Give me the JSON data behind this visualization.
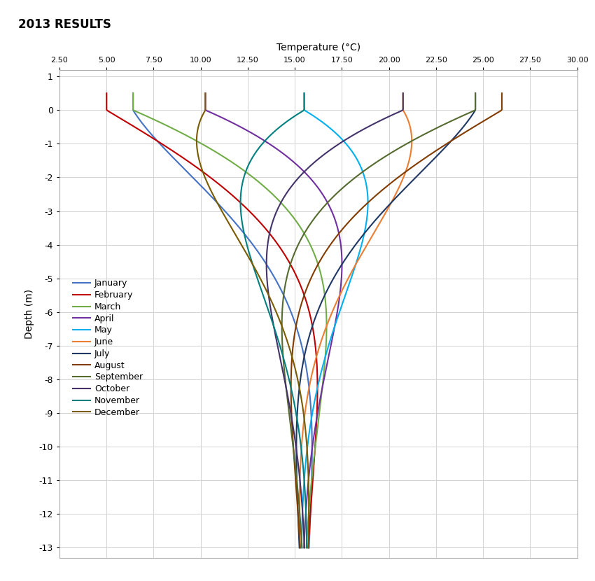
{
  "title": "2013 RESULTS",
  "xlabel": "Temperature (°C)",
  "ylabel": "Depth (m)",
  "xlim": [
    2.5,
    30.0
  ],
  "ylim": [
    -13.3,
    1.2
  ],
  "xticks": [
    2.5,
    5.0,
    7.5,
    10.0,
    12.5,
    15.0,
    17.5,
    20.0,
    22.5,
    25.0,
    27.5,
    30.0
  ],
  "yticks": [
    1,
    0,
    -1,
    -2,
    -3,
    -4,
    -5,
    -6,
    -7,
    -8,
    -9,
    -10,
    -11,
    -12,
    -13
  ],
  "T_mean": 15.5,
  "amplitude": 10.5,
  "damping_depth": 3.5,
  "convergence_depth": -13.0,
  "months": [
    {
      "name": "January",
      "color": "#4472C4",
      "month_num": 1
    },
    {
      "name": "February",
      "color": "#C00000",
      "month_num": 2
    },
    {
      "name": "March",
      "color": "#70AD47",
      "month_num": 3
    },
    {
      "name": "April",
      "color": "#7030A0",
      "month_num": 4
    },
    {
      "name": "May",
      "color": "#00B0F0",
      "month_num": 5
    },
    {
      "name": "June",
      "color": "#ED7D31",
      "month_num": 6
    },
    {
      "name": "July",
      "color": "#1F3864",
      "month_num": 7
    },
    {
      "name": "August",
      "color": "#833C00",
      "month_num": 8
    },
    {
      "name": "September",
      "color": "#556B2F",
      "month_num": 9
    },
    {
      "name": "October",
      "color": "#44336B",
      "month_num": 10
    },
    {
      "name": "November",
      "color": "#008080",
      "month_num": 11
    },
    {
      "name": "December",
      "color": "#7B5B00",
      "month_num": 12
    }
  ],
  "background_color": "#FFFFFF",
  "grid_color": "#D3D3D3",
  "figsize": [
    8.5,
    8.3
  ],
  "dpi": 100
}
